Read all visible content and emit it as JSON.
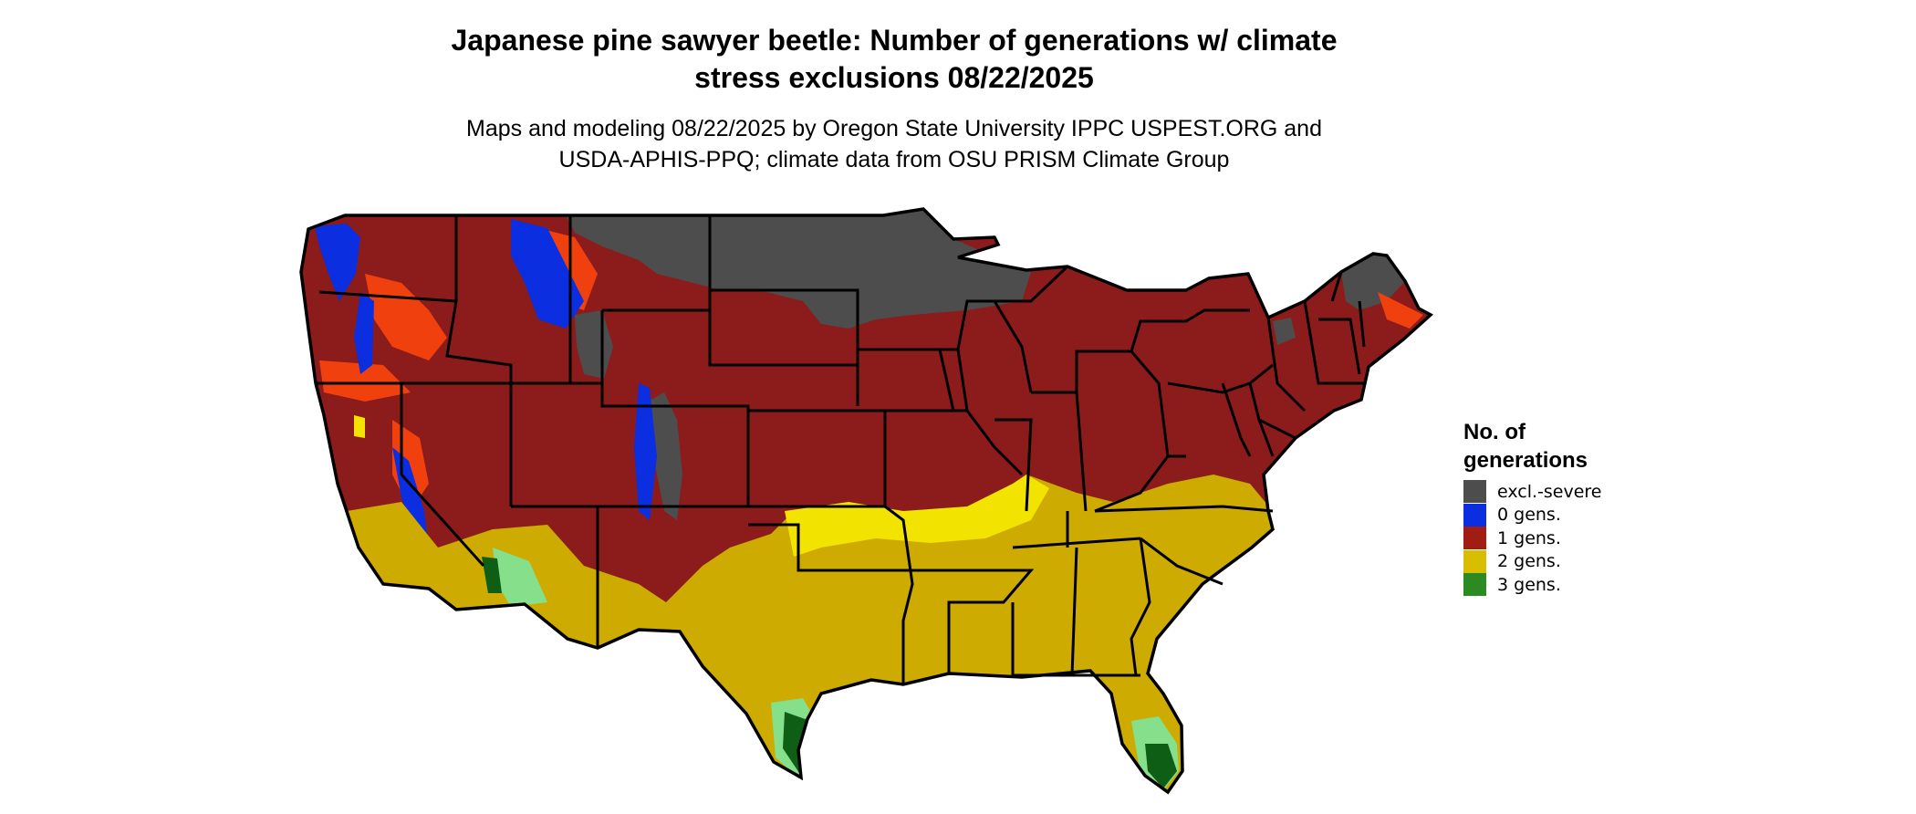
{
  "title": {
    "line1": "Japanese pine sawyer beetle: Number of generations w/ climate",
    "line2": "stress exclusions 08/22/2025"
  },
  "subtitle": {
    "line1": "Maps and modeling 08/22/2025 by Oregon State University IPPC USPEST.ORG and",
    "line2": "USDA-APHIS-PPQ; climate data from OSU PRISM Climate Group"
  },
  "legend": {
    "title_line1": "No. of",
    "title_line2": "generations",
    "items": [
      {
        "label": "excl.-severe",
        "color": "#4d4d4d"
      },
      {
        "label": "0 gens.",
        "color": "#0a2ee0"
      },
      {
        "label": "1 gens.",
        "color": "#a11d14"
      },
      {
        "label": "2 gens.",
        "color": "#d8bd00"
      },
      {
        "label": "3 gens.",
        "color": "#2c8a23"
      }
    ]
  },
  "map_colors": {
    "excl_severe": "#4d4d4d",
    "gen0": "#0a2ee0",
    "gen1_fill": "#8b1c1b",
    "gen1_orange": "#f0400e",
    "gen2_fill": "#cdab00",
    "gen2_bright": "#f2e400",
    "gen3_light": "#86e08b",
    "gen3_dark": "#0f5e16",
    "border": "#000000"
  }
}
